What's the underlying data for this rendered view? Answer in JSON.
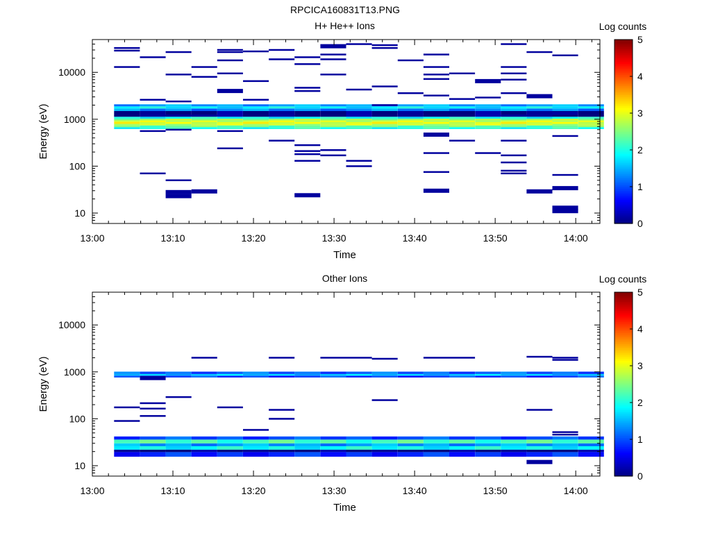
{
  "figure": {
    "title": "RPCICA160831T13.PNG"
  },
  "chart_data": [
    {
      "type": "heatmap",
      "title": "H+ He++ Ions",
      "xlabel": "Time",
      "ylabel": "Energy (eV)",
      "x_ticks": [
        "13:00",
        "13:10",
        "13:20",
        "13:30",
        "13:40",
        "13:50",
        "14:00"
      ],
      "x_range_minutes": [
        0,
        63
      ],
      "y_scale": "log",
      "y_range": [
        6,
        50000
      ],
      "y_ticks": [
        10,
        100,
        1000,
        10000
      ],
      "y_tick_labels": [
        "10",
        "100",
        "1000",
        "10000"
      ],
      "colorbar": {
        "label": "Log counts",
        "range": [
          0,
          5
        ],
        "ticks": [
          "0",
          "1",
          "2",
          "3",
          "4",
          "5"
        ],
        "colormap": "jet"
      },
      "time_bins_minutes": [
        2.7,
        5.9,
        9.1,
        12.3,
        15.5,
        18.7,
        21.9,
        25.1,
        28.3,
        31.5,
        34.7,
        37.9,
        41.1,
        44.3,
        47.5,
        50.7,
        53.9,
        57.1,
        60.3
      ],
      "bands": [
        {
          "e_lo": 620,
          "e_hi": 680,
          "level": 2.0
        },
        {
          "e_lo": 680,
          "e_hi": 740,
          "level": 2.4
        },
        {
          "e_lo": 740,
          "e_hi": 800,
          "level": 2.8
        },
        {
          "e_lo": 800,
          "e_hi": 870,
          "level": 3.0
        },
        {
          "e_lo": 870,
          "e_hi": 950,
          "level": 2.9
        },
        {
          "e_lo": 950,
          "e_hi": 1030,
          "level": 2.6
        },
        {
          "e_lo": 1030,
          "e_hi": 1130,
          "level": 1.9
        },
        {
          "e_lo": 1130,
          "e_hi": 1500,
          "level": 0.0
        },
        {
          "e_lo": 1500,
          "e_hi": 1700,
          "level": 1.3
        },
        {
          "e_lo": 1700,
          "e_hi": 1880,
          "level": 1.8
        },
        {
          "e_lo": 1880,
          "e_hi": 2080,
          "level": 1.4
        }
      ],
      "sparse_marks": [
        {
          "bin": 0,
          "energy": 33000
        },
        {
          "bin": 0,
          "energy": 29000
        },
        {
          "bin": 0,
          "energy": 13000
        },
        {
          "bin": 1,
          "energy": 21000
        },
        {
          "bin": 1,
          "energy": 2600
        },
        {
          "bin": 1,
          "energy": 1200
        },
        {
          "bin": 1,
          "energy": 560
        },
        {
          "bin": 1,
          "energy": 70
        },
        {
          "bin": 2,
          "energy": 27000
        },
        {
          "bin": 2,
          "energy": 9000
        },
        {
          "bin": 2,
          "energy": 2400
        },
        {
          "bin": 2,
          "energy": 1200
        },
        {
          "bin": 2,
          "energy": 600
        },
        {
          "bin": 2,
          "energy": 50
        },
        {
          "bin": 2,
          "energy": 28,
          "thick": 1
        },
        {
          "bin": 2,
          "energy": 23,
          "thick": 1
        },
        {
          "bin": 3,
          "energy": 13000
        },
        {
          "bin": 3,
          "energy": 8000
        },
        {
          "bin": 3,
          "energy": 1200
        },
        {
          "bin": 3,
          "energy": 29,
          "thick": 1
        },
        {
          "bin": 4,
          "energy": 30000
        },
        {
          "bin": 4,
          "energy": 27000
        },
        {
          "bin": 4,
          "energy": 18000
        },
        {
          "bin": 4,
          "energy": 9500
        },
        {
          "bin": 4,
          "energy": 4000,
          "thick": 1
        },
        {
          "bin": 4,
          "energy": 560
        },
        {
          "bin": 4,
          "energy": 240
        },
        {
          "bin": 5,
          "energy": 28000
        },
        {
          "bin": 5,
          "energy": 6500
        },
        {
          "bin": 5,
          "energy": 2600
        },
        {
          "bin": 6,
          "energy": 30000
        },
        {
          "bin": 6,
          "energy": 19000
        },
        {
          "bin": 6,
          "energy": 1200
        },
        {
          "bin": 6,
          "energy": 350
        },
        {
          "bin": 7,
          "energy": 21000
        },
        {
          "bin": 7,
          "energy": 15000
        },
        {
          "bin": 7,
          "energy": 4700
        },
        {
          "bin": 7,
          "energy": 4000
        },
        {
          "bin": 7,
          "energy": 280
        },
        {
          "bin": 7,
          "energy": 210
        },
        {
          "bin": 7,
          "energy": 180
        },
        {
          "bin": 7,
          "energy": 130
        },
        {
          "bin": 7,
          "energy": 24,
          "thick": 1
        },
        {
          "bin": 8,
          "energy": 36000,
          "thick": 1
        },
        {
          "bin": 8,
          "energy": 24000
        },
        {
          "bin": 8,
          "energy": 19000
        },
        {
          "bin": 8,
          "energy": 9000
        },
        {
          "bin": 8,
          "energy": 220
        },
        {
          "bin": 8,
          "energy": 170
        },
        {
          "bin": 9,
          "energy": 40000
        },
        {
          "bin": 9,
          "energy": 4300
        },
        {
          "bin": 9,
          "energy": 130
        },
        {
          "bin": 9,
          "energy": 100
        },
        {
          "bin": 10,
          "energy": 38000
        },
        {
          "bin": 10,
          "energy": 33000
        },
        {
          "bin": 10,
          "energy": 5000
        },
        {
          "bin": 10,
          "energy": 2000
        },
        {
          "bin": 11,
          "energy": 18000
        },
        {
          "bin": 11,
          "energy": 3600
        },
        {
          "bin": 11,
          "energy": 1400
        },
        {
          "bin": 12,
          "energy": 24000
        },
        {
          "bin": 12,
          "energy": 13000
        },
        {
          "bin": 12,
          "energy": 9000
        },
        {
          "bin": 12,
          "energy": 7200
        },
        {
          "bin": 12,
          "energy": 3200
        },
        {
          "bin": 12,
          "energy": 470,
          "thick": 1
        },
        {
          "bin": 12,
          "energy": 190
        },
        {
          "bin": 12,
          "energy": 75
        },
        {
          "bin": 12,
          "energy": 30,
          "thick": 1
        },
        {
          "bin": 13,
          "energy": 9500
        },
        {
          "bin": 13,
          "energy": 2700
        },
        {
          "bin": 13,
          "energy": 350
        },
        {
          "bin": 14,
          "energy": 6500,
          "thick": 1
        },
        {
          "bin": 14,
          "energy": 2900
        },
        {
          "bin": 14,
          "energy": 190
        },
        {
          "bin": 15,
          "energy": 40000
        },
        {
          "bin": 15,
          "energy": 13000
        },
        {
          "bin": 15,
          "energy": 9500
        },
        {
          "bin": 15,
          "energy": 7000
        },
        {
          "bin": 15,
          "energy": 3600
        },
        {
          "bin": 15,
          "energy": 1200
        },
        {
          "bin": 15,
          "energy": 350
        },
        {
          "bin": 15,
          "energy": 170
        },
        {
          "bin": 15,
          "energy": 120
        },
        {
          "bin": 15,
          "energy": 80
        },
        {
          "bin": 15,
          "energy": 70
        },
        {
          "bin": 16,
          "energy": 27000
        },
        {
          "bin": 16,
          "energy": 3100,
          "thick": 1
        },
        {
          "bin": 16,
          "energy": 29,
          "thick": 1
        },
        {
          "bin": 17,
          "energy": 23000
        },
        {
          "bin": 17,
          "energy": 1400
        },
        {
          "bin": 17,
          "energy": 1300
        },
        {
          "bin": 17,
          "energy": 440
        },
        {
          "bin": 17,
          "energy": 65
        },
        {
          "bin": 17,
          "energy": 34,
          "thick": 1
        },
        {
          "bin": 17,
          "energy": 13,
          "thick": 1
        },
        {
          "bin": 17,
          "energy": 11,
          "thick": 1
        }
      ]
    },
    {
      "type": "heatmap",
      "title": "Other Ions",
      "xlabel": "Time",
      "ylabel": "Energy (eV)",
      "x_ticks": [
        "13:00",
        "13:10",
        "13:20",
        "13:30",
        "13:40",
        "13:50",
        "14:00"
      ],
      "x_range_minutes": [
        0,
        63
      ],
      "y_scale": "log",
      "y_range": [
        6,
        50000
      ],
      "y_ticks": [
        10,
        100,
        1000,
        10000
      ],
      "y_tick_labels": [
        "10",
        "100",
        "1000",
        "10000"
      ],
      "colorbar": {
        "label": "Log counts",
        "range": [
          0,
          5
        ],
        "ticks": [
          "0",
          "1",
          "2",
          "3",
          "4",
          "5"
        ],
        "colormap": "jet"
      },
      "time_bins_minutes": [
        2.7,
        5.9,
        9.1,
        12.3,
        15.5,
        18.7,
        21.9,
        25.1,
        28.3,
        31.5,
        34.7,
        37.9,
        41.1,
        44.3,
        47.5,
        50.7,
        53.9,
        57.1,
        60.3
      ],
      "bands": [
        {
          "e_lo": 15.5,
          "e_hi": 19.5,
          "level": 0.8
        },
        {
          "e_lo": 19.5,
          "e_hi": 22,
          "level": 0.0
        },
        {
          "e_lo": 22,
          "e_hi": 26,
          "level": 1.9
        },
        {
          "e_lo": 26,
          "e_hi": 30,
          "level": 1.4
        },
        {
          "e_lo": 30,
          "e_hi": 36,
          "level": 2.2
        },
        {
          "e_lo": 36,
          "e_hi": 42,
          "level": 1.0
        },
        {
          "e_lo": 760,
          "e_hi": 830,
          "level": 0.9
        },
        {
          "e_lo": 830,
          "e_hi": 900,
          "level": 1.6
        },
        {
          "e_lo": 900,
          "e_hi": 1010,
          "level": 1.1
        }
      ],
      "sparse_marks": [
        {
          "bin": 0,
          "energy": 175
        },
        {
          "bin": 0,
          "energy": 90
        },
        {
          "bin": 1,
          "energy": 215
        },
        {
          "bin": 1,
          "energy": 165
        },
        {
          "bin": 1,
          "energy": 115
        },
        {
          "bin": 1,
          "energy": 740,
          "thick": 1
        },
        {
          "bin": 2,
          "energy": 290
        },
        {
          "bin": 3,
          "energy": 2000
        },
        {
          "bin": 4,
          "energy": 175
        },
        {
          "bin": 5,
          "energy": 58
        },
        {
          "bin": 6,
          "energy": 2000
        },
        {
          "bin": 6,
          "energy": 155
        },
        {
          "bin": 6,
          "energy": 100
        },
        {
          "bin": 8,
          "energy": 2000
        },
        {
          "bin": 9,
          "energy": 2000
        },
        {
          "bin": 10,
          "energy": 1900
        },
        {
          "bin": 10,
          "energy": 250
        },
        {
          "bin": 12,
          "energy": 2000
        },
        {
          "bin": 13,
          "energy": 2000
        },
        {
          "bin": 16,
          "energy": 2100
        },
        {
          "bin": 16,
          "energy": 155
        },
        {
          "bin": 16,
          "energy": 12,
          "thick": 1
        },
        {
          "bin": 17,
          "energy": 2000
        },
        {
          "bin": 17,
          "energy": 1800
        },
        {
          "bin": 17,
          "energy": 52
        },
        {
          "bin": 17,
          "energy": 46
        }
      ]
    }
  ]
}
